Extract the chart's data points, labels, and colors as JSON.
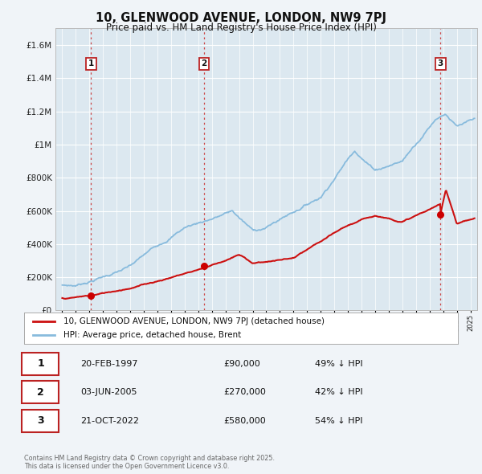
{
  "title": "10, GLENWOOD AVENUE, LONDON, NW9 7PJ",
  "subtitle": "Price paid vs. HM Land Registry's House Price Index (HPI)",
  "background_color": "#f0f4f8",
  "plot_bg_color": "#dce8f0",
  "grid_color": "#ffffff",
  "sale_dates": [
    1997.12,
    2005.42,
    2022.8
  ],
  "sale_prices": [
    90000,
    270000,
    580000
  ],
  "sale_labels": [
    "1",
    "2",
    "3"
  ],
  "vline_color": "#cc4444",
  "marker_color": "#cc0000",
  "hpi_color": "#88bbdd",
  "price_color": "#cc1111",
  "legend_label_price": "10, GLENWOOD AVENUE, LONDON, NW9 7PJ (detached house)",
  "legend_label_hpi": "HPI: Average price, detached house, Brent",
  "table_entries": [
    {
      "num": "1",
      "date": "20-FEB-1997",
      "price": "£90,000",
      "hpi": "49% ↓ HPI"
    },
    {
      "num": "2",
      "date": "03-JUN-2005",
      "price": "£270,000",
      "hpi": "42% ↓ HPI"
    },
    {
      "num": "3",
      "date": "21-OCT-2022",
      "price": "£580,000",
      "hpi": "54% ↓ HPI"
    }
  ],
  "footnote": "Contains HM Land Registry data © Crown copyright and database right 2025.\nThis data is licensed under the Open Government Licence v3.0.",
  "ylim": [
    0,
    1700000
  ],
  "xlim": [
    1994.5,
    2025.5
  ],
  "yticks": [
    0,
    200000,
    400000,
    600000,
    800000,
    1000000,
    1200000,
    1400000,
    1600000
  ],
  "ytick_labels": [
    "£0",
    "£200K",
    "£400K",
    "£600K",
    "£800K",
    "£1M",
    "£1.2M",
    "£1.4M",
    "£1.6M"
  ]
}
